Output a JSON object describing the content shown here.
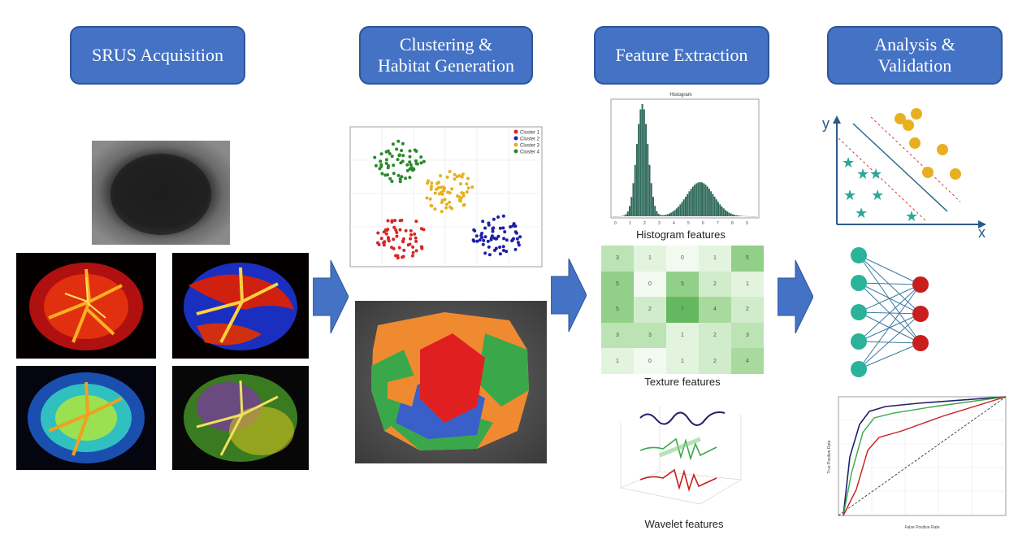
{
  "stages": [
    {
      "id": "acq",
      "title": "SRUS Acquisition"
    },
    {
      "id": "clu",
      "title": "Clustering &\nHabitat Generation"
    },
    {
      "id": "feat",
      "title": "Feature Extraction"
    },
    {
      "id": "ana",
      "title": "Analysis &\nValidation"
    }
  ],
  "captions": {
    "histogram": "Histogram features",
    "texture": "Texture features",
    "wavelet": "Wavelet features"
  },
  "histogram_title": "Histogram",
  "scatter_legend": [
    "Cluster 1",
    "Cluster 2",
    "Cluster 3",
    "Cluster 4"
  ],
  "svm_axes": {
    "y": "y",
    "x": "x"
  },
  "texture_grid": [
    [
      3,
      1,
      0,
      1,
      5
    ],
    [
      5,
      0,
      5,
      2,
      1
    ],
    [
      5,
      2,
      7,
      4,
      2
    ],
    [
      3,
      3,
      1,
      2,
      3
    ],
    [
      1,
      0,
      1,
      2,
      4
    ]
  ],
  "roc_axes": {
    "x": "False Positive Rate",
    "y": "True Positive Rate"
  },
  "colors": {
    "box_fill": "#4472c4",
    "arrow_fill": "#4472c4",
    "cluster1": "#d62728",
    "cluster2": "#1f1fa8",
    "cluster3": "#e6b020",
    "cluster4": "#2a8a2a",
    "habitat_orange": "#f08a30",
    "habitat_green": "#3aa84a",
    "habitat_blue": "#3a5fc8",
    "habitat_red": "#e02020",
    "node_teal": "#2bb39a",
    "node_red": "#c81e1e"
  }
}
